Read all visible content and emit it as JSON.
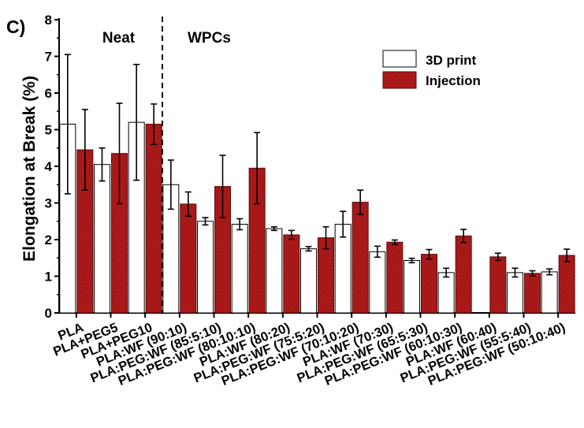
{
  "panel_label": "C)",
  "chart_data": {
    "type": "bar",
    "ylabel": "Elongation at Break (%)",
    "xlabel": "",
    "ylim": [
      0,
      8
    ],
    "yticks": [
      0,
      1,
      2,
      3,
      4,
      5,
      6,
      7,
      8
    ],
    "grid": false,
    "legend_position": "top-right",
    "group_labels": [
      "Neat",
      "WPCs"
    ],
    "categories": [
      "PLA",
      "PLA+PEG5",
      "PLA+PEG10",
      "PLA:WF (90:10)",
      "PLA:PEG:WF (85:5:10)",
      "PLA:PEG:WF (80:10:10)",
      "PLA:WF (80:20)",
      "PLA:PEG:WF (75:5:20)",
      "PLA:PEG:WF (70:10:20)",
      "PLA:WF (70:30)",
      "PLA:PEG:WF (65:5:30)",
      "PLA:PEG:WF (60:10:30)",
      "PLA:WF (60:40)",
      "PLA:PEG:WF (55:5:40)",
      "PLA:PEG:WF (50:10:40)"
    ],
    "series": [
      {
        "name": "3D print",
        "color": "#ffffff",
        "values": [
          5.15,
          4.05,
          5.2,
          3.5,
          2.5,
          2.42,
          2.3,
          1.75,
          2.42,
          1.67,
          1.43,
          1.1,
          null,
          1.1,
          1.12
        ],
        "errors": [
          1.9,
          0.45,
          1.58,
          0.67,
          0.1,
          0.15,
          0.05,
          0.06,
          0.35,
          0.15,
          0.06,
          0.12,
          null,
          0.12,
          0.08
        ]
      },
      {
        "name": "Injection",
        "color": "#b31b1b",
        "values": [
          4.45,
          4.35,
          5.15,
          2.97,
          3.45,
          3.95,
          2.13,
          2.05,
          3.02,
          1.93,
          1.6,
          2.1,
          1.53,
          1.08,
          1.57
        ],
        "errors": [
          1.1,
          1.37,
          0.55,
          0.33,
          0.85,
          0.97,
          0.12,
          0.3,
          0.33,
          0.06,
          0.13,
          0.18,
          0.1,
          0.07,
          0.17
        ]
      }
    ]
  }
}
